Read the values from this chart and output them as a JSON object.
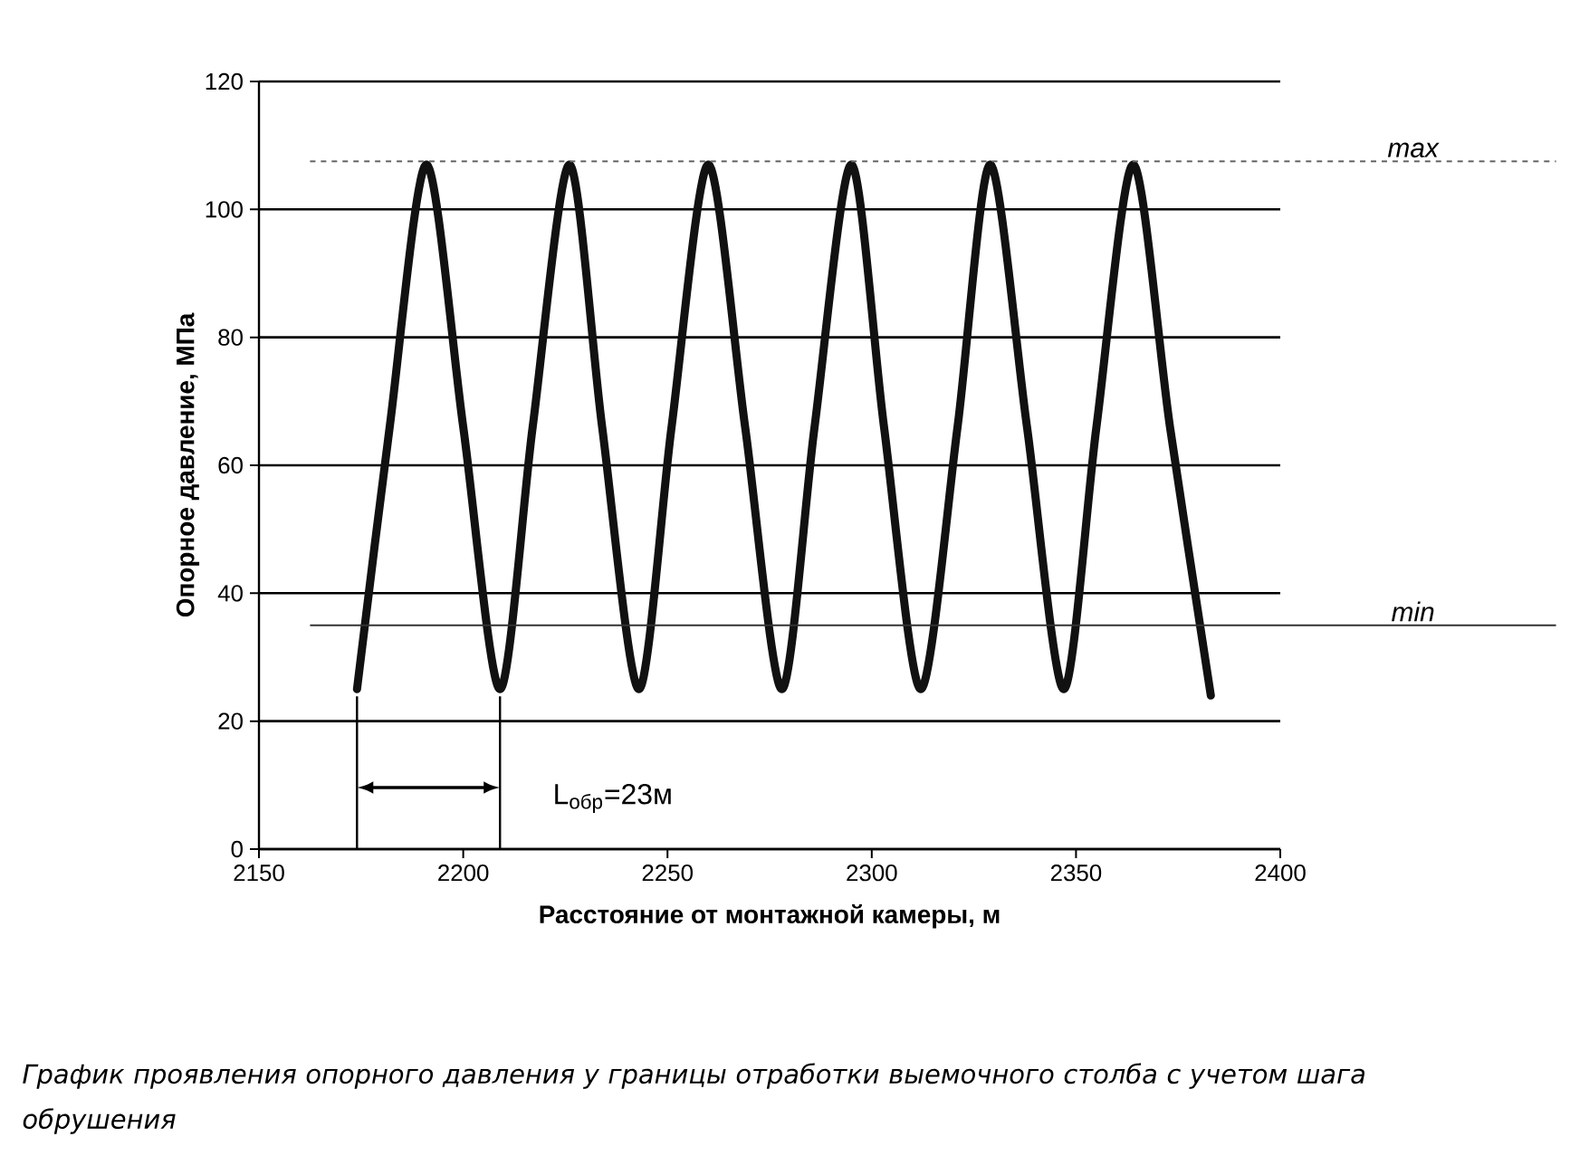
{
  "chart_data": {
    "type": "line",
    "xlabel": "Расстояние от монтажной камеры, м",
    "ylabel": "Опорное давление, МПа",
    "x": [
      2174,
      2182,
      2191,
      2200,
      2209,
      2217,
      2226,
      2234,
      2243,
      2251,
      2260,
      2269,
      2278,
      2286,
      2295,
      2303,
      2312,
      2321,
      2329,
      2338,
      2347,
      2355,
      2364,
      2373,
      2383
    ],
    "values": [
      25,
      66,
      107,
      66,
      25,
      66,
      107,
      66,
      25,
      66,
      107,
      66,
      25,
      66,
      107,
      66,
      25,
      66,
      107,
      66,
      25,
      66,
      107,
      66,
      24
    ],
    "color": "#111111",
    "xlim": [
      2150,
      2400
    ],
    "ylim": [
      0,
      120
    ],
    "xticks": [
      2150,
      2200,
      2250,
      2300,
      2350,
      2400
    ],
    "yticks": [
      0,
      20,
      40,
      60,
      80,
      100,
      120
    ],
    "grid": "y",
    "ref_lines": [
      {
        "axis": "y",
        "value": 107.5,
        "label": "max",
        "color": "#666666",
        "line_style": "dashed"
      },
      {
        "axis": "y",
        "value": 35,
        "label": "min",
        "color": "#333333",
        "line_style": "solid"
      }
    ],
    "annotations": [
      "L$_{обр}$=23м",
      "График проявления опорного давления у границы отработки выемочного столба с учетом шага обрушения"
    ]
  }
}
